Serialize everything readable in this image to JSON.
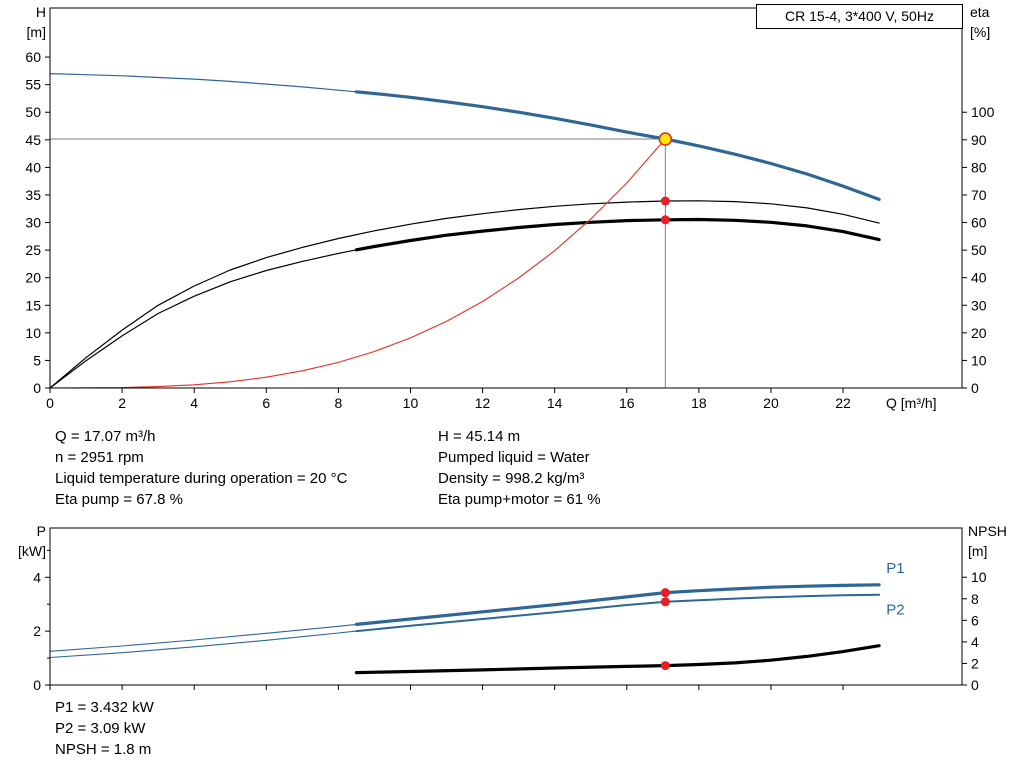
{
  "info_top": {
    "left": [
      "Q = 17.07 m³/h",
      "n = 2951 rpm",
      "Liquid temperature during operation = 20 °C",
      "Eta pump = 67.8 %"
    ],
    "right": [
      "H = 45.14 m",
      "Pumped liquid = Water",
      "Density = 998.2 kg/m³",
      "Eta pump+motor = 61 %"
    ]
  },
  "info_bottom": [
    "P1 = 3.432 kW",
    "P2 = 3.09 kW",
    "NPSH = 1.8 m"
  ],
  "colors": {
    "curve_blue": "#2e6695",
    "curve_black": "#000000",
    "curve_red": "#e03127",
    "dot_red": "#ec1c24",
    "duty_yellow": "#ffe600",
    "guide_gray": "#7f7f7f"
  },
  "chart_data": [
    {
      "type": "line",
      "title": "CR 15-4, 3*400 V, 50Hz",
      "xlabel": "Q [m³/h]",
      "axis_labels": {
        "left": [
          "H",
          "[m]"
        ],
        "right": [
          "eta",
          "[%]"
        ]
      },
      "xlim": [
        0,
        25.3
      ],
      "xticks": [
        0,
        2,
        4,
        6,
        8,
        10,
        12,
        14,
        16,
        18,
        20,
        22
      ],
      "show_xtick_labels": true,
      "ylim_left": [
        0,
        68.9
      ],
      "yticks_left": [
        0,
        5,
        10,
        15,
        20,
        25,
        30,
        35,
        40,
        45,
        50,
        55,
        60
      ],
      "ylim_right": [
        0,
        137.8
      ],
      "yticks_right": [
        0,
        10,
        20,
        30,
        40,
        50,
        60,
        70,
        80,
        90,
        100
      ],
      "duty_point": {
        "Q": 17.07,
        "H": 45.14,
        "eta_pump": 67.8,
        "eta_pump_motor": 61
      },
      "guides": [
        {
          "name": "duty-vline",
          "type": "v",
          "x": 17.07,
          "y2": 45.14,
          "axis": "left",
          "color": "#7f7f7f"
        },
        {
          "name": "duty-hline",
          "type": "h",
          "y": 45.14,
          "x1": 0,
          "x2": 17.07,
          "axis": "left",
          "color": "#7f7f7f"
        }
      ],
      "series": [
        {
          "name": "qh-curve-thin",
          "axis": "left",
          "color": "#2e6695",
          "width": 1.2,
          "points": [
            [
              0,
              57
            ],
            [
              1,
              56.8
            ],
            [
              2,
              56.6
            ],
            [
              3,
              56.3
            ],
            [
              4,
              56
            ],
            [
              5,
              55.6
            ],
            [
              6,
              55.1
            ],
            [
              7,
              54.6
            ],
            [
              8,
              54
            ],
            [
              8.5,
              53.7
            ]
          ]
        },
        {
          "name": "qh-curve",
          "axis": "left",
          "color": "#2e6695",
          "width": 3.2,
          "points": [
            [
              8.5,
              53.7
            ],
            [
              9,
              53.4
            ],
            [
              10,
              52.7
            ],
            [
              11,
              51.9
            ],
            [
              12,
              51
            ],
            [
              13,
              50
            ],
            [
              14,
              48.9
            ],
            [
              15,
              47.7
            ],
            [
              16,
              46.4
            ],
            [
              17.07,
              45.14
            ],
            [
              18,
              43.9
            ],
            [
              19,
              42.4
            ],
            [
              20,
              40.7
            ],
            [
              21,
              38.8
            ],
            [
              22,
              36.6
            ],
            [
              23,
              34.2
            ]
          ]
        },
        {
          "name": "eta-pump-curve",
          "axis": "right",
          "color": "#000000",
          "width": 1.2,
          "points": [
            [
              0,
              0
            ],
            [
              1,
              11
            ],
            [
              2,
              21
            ],
            [
              3,
              30
            ],
            [
              4,
              37
            ],
            [
              5,
              42.8
            ],
            [
              6,
              47.3
            ],
            [
              7,
              51
            ],
            [
              8,
              54.2
            ],
            [
              9,
              57
            ],
            [
              10,
              59.4
            ],
            [
              11,
              61.5
            ],
            [
              12,
              63.2
            ],
            [
              13,
              64.7
            ],
            [
              14,
              65.9
            ],
            [
              15,
              66.8
            ],
            [
              16,
              67.4
            ],
            [
              17.07,
              67.8
            ],
            [
              18,
              67.9
            ],
            [
              19,
              67.6
            ],
            [
              20,
              66.8
            ],
            [
              21,
              65.3
            ],
            [
              22,
              63
            ],
            [
              23,
              59.8
            ]
          ]
        },
        {
          "name": "eta-pump-motor-curve-thin",
          "axis": "right",
          "color": "#000000",
          "width": 1.2,
          "points": [
            [
              0,
              0
            ],
            [
              1,
              9.9
            ],
            [
              2,
              18.9
            ],
            [
              3,
              27
            ],
            [
              4,
              33.3
            ],
            [
              5,
              38.5
            ],
            [
              6,
              42.6
            ],
            [
              7,
              45.9
            ],
            [
              8,
              48.8
            ],
            [
              8.5,
              50.1
            ]
          ]
        },
        {
          "name": "eta-pump-motor-curve",
          "axis": "right",
          "color": "#000000",
          "width": 3.2,
          "points": [
            [
              8.5,
              50.1
            ],
            [
              9,
              51.3
            ],
            [
              10,
              53.5
            ],
            [
              11,
              55.4
            ],
            [
              12,
              56.9
            ],
            [
              13,
              58.2
            ],
            [
              14,
              59.3
            ],
            [
              15,
              60.1
            ],
            [
              16,
              60.7
            ],
            [
              17.07,
              61
            ],
            [
              18,
              61.1
            ],
            [
              19,
              60.8
            ],
            [
              20,
              60.1
            ],
            [
              21,
              58.8
            ],
            [
              22,
              56.7
            ],
            [
              23,
              53.8
            ]
          ]
        },
        {
          "name": "system-curve",
          "axis": "left",
          "color": "#e03127",
          "width": 1.1,
          "points": [
            [
              0,
              0
            ],
            [
              2,
              0.07
            ],
            [
              3,
              0.25
            ],
            [
              4,
              0.58
            ],
            [
              5,
              1.13
            ],
            [
              6,
              1.96
            ],
            [
              7,
              3.11
            ],
            [
              8,
              4.65
            ],
            [
              9,
              6.62
            ],
            [
              10,
              9.08
            ],
            [
              11,
              12.08
            ],
            [
              12,
              15.68
            ],
            [
              13,
              19.94
            ],
            [
              14,
              24.9
            ],
            [
              15,
              30.63
            ],
            [
              16,
              37.17
            ],
            [
              16.5,
              40.9
            ],
            [
              17.07,
              45.14
            ]
          ]
        }
      ],
      "markers": [
        {
          "name": "duty-point",
          "x": 17.07,
          "y": 45.14,
          "axis": "left",
          "r": 6,
          "fill": "#ffe600",
          "stroke": "#d8342c",
          "stroke_width": 1.6
        },
        {
          "name": "eta-pump-duty-dot",
          "x": 17.07,
          "y": 67.8,
          "axis": "right",
          "r": 4.5,
          "fill": "#ec1c24"
        },
        {
          "name": "eta-pump-motor-duty-dot",
          "x": 17.07,
          "y": 61,
          "axis": "right",
          "r": 4.5,
          "fill": "#ec1c24"
        }
      ]
    },
    {
      "type": "line",
      "title": "",
      "xlabel": "",
      "axis_labels": {
        "left": [
          "P",
          "[kW]"
        ],
        "right": [
          "NPSH",
          "[m]"
        ]
      },
      "xlim": [
        0,
        25.3
      ],
      "xticks": [
        0,
        2,
        4,
        6,
        8,
        10,
        12,
        14,
        16,
        18,
        20,
        22
      ],
      "show_xtick_labels": false,
      "ylim_left": [
        0,
        5.83
      ],
      "yticks_left": [
        0,
        2,
        4
      ],
      "yticks_left_minor": [
        1,
        3,
        5
      ],
      "ylim_right": [
        0,
        14.57
      ],
      "yticks_right": [
        0,
        2,
        4,
        6,
        8,
        10
      ],
      "duty_point": {
        "Q": 17.07,
        "P1": 3.432,
        "P2": 3.09,
        "NPSH": 1.8
      },
      "series_labels": [
        {
          "name": "p1-label",
          "text": "P1",
          "x": 23.2,
          "y": 4.35,
          "axis": "left",
          "color": "#2e6695"
        },
        {
          "name": "p2-label",
          "text": "P2",
          "x": 23.2,
          "y": 2.8,
          "axis": "left",
          "color": "#2e6695"
        }
      ],
      "series": [
        {
          "name": "p1-curve-thin",
          "axis": "left",
          "color": "#2e6695",
          "width": 1.1,
          "points": [
            [
              0,
              1.25
            ],
            [
              2,
              1.45
            ],
            [
              4,
              1.67
            ],
            [
              6,
              1.92
            ],
            [
              8,
              2.18
            ],
            [
              8.5,
              2.25
            ]
          ]
        },
        {
          "name": "p1-curve",
          "axis": "left",
          "color": "#2e6695",
          "width": 3.2,
          "points": [
            [
              8.5,
              2.25
            ],
            [
              10,
              2.45
            ],
            [
              12,
              2.72
            ],
            [
              14,
              2.98
            ],
            [
              16,
              3.27
            ],
            [
              17.07,
              3.43
            ],
            [
              18,
              3.5
            ],
            [
              19,
              3.57
            ],
            [
              20,
              3.63
            ],
            [
              21,
              3.67
            ],
            [
              22,
              3.7
            ],
            [
              23,
              3.72
            ]
          ]
        },
        {
          "name": "p2-curve-thin",
          "axis": "left",
          "color": "#2e6695",
          "width": 1.1,
          "points": [
            [
              0,
              1.02
            ],
            [
              2,
              1.2
            ],
            [
              4,
              1.42
            ],
            [
              6,
              1.66
            ],
            [
              8,
              1.93
            ],
            [
              8.5,
              2
            ]
          ]
        },
        {
          "name": "p2-curve",
          "axis": "left",
          "color": "#2e6695",
          "width": 2,
          "points": [
            [
              8.5,
              2
            ],
            [
              10,
              2.2
            ],
            [
              12,
              2.45
            ],
            [
              14,
              2.7
            ],
            [
              16,
              2.97
            ],
            [
              17.07,
              3.09
            ],
            [
              18,
              3.15
            ],
            [
              19,
              3.21
            ],
            [
              20,
              3.26
            ],
            [
              21,
              3.3
            ],
            [
              22,
              3.33
            ],
            [
              23,
              3.35
            ]
          ]
        },
        {
          "name": "npsh-curve",
          "axis": "right",
          "color": "#000000",
          "width": 3.2,
          "points": [
            [
              8.5,
              1.15
            ],
            [
              10,
              1.25
            ],
            [
              12,
              1.4
            ],
            [
              14,
              1.58
            ],
            [
              16,
              1.73
            ],
            [
              17.07,
              1.8
            ],
            [
              18,
              1.9
            ],
            [
              19,
              2.05
            ],
            [
              20,
              2.3
            ],
            [
              21,
              2.65
            ],
            [
              22,
              3.1
            ],
            [
              23,
              3.65
            ]
          ]
        }
      ],
      "markers": [
        {
          "name": "p1-duty-dot",
          "x": 17.07,
          "y": 3.43,
          "axis": "left",
          "r": 4.5,
          "fill": "#ec1c24"
        },
        {
          "name": "p2-duty-dot",
          "x": 17.07,
          "y": 3.09,
          "axis": "left",
          "r": 4.5,
          "fill": "#ec1c24"
        },
        {
          "name": "npsh-duty-dot",
          "x": 17.07,
          "y": 1.8,
          "axis": "right",
          "r": 4.5,
          "fill": "#ec1c24"
        }
      ]
    }
  ]
}
